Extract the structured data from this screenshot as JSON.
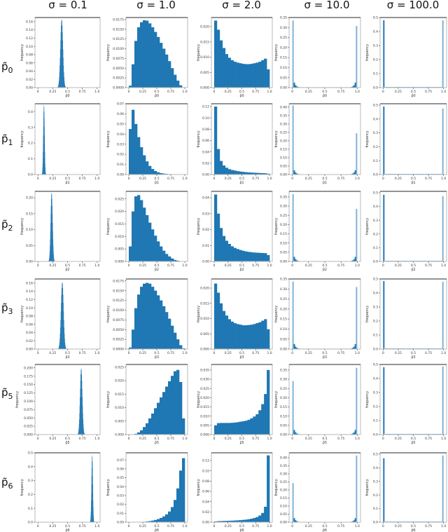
{
  "figure": {
    "column_titles": [
      "σ = 0.1",
      "σ = 1.0",
      "σ = 2.0",
      "σ = 10.0",
      "σ = 100.0"
    ],
    "row_labels": [
      {
        "base": "p̃",
        "sub": "0"
      },
      {
        "base": "p̃",
        "sub": "1"
      },
      {
        "base": "p̃",
        "sub": "2"
      },
      {
        "base": "p̃",
        "sub": "3"
      },
      {
        "base": "p̃",
        "sub": "5"
      },
      {
        "base": "p̃",
        "sub": "6"
      }
    ],
    "ylabel": "frequency",
    "xticks": [
      "0",
      "0.25",
      "0.5",
      "0.75",
      "1.0"
    ],
    "bar_color": "#1f77b4",
    "edge_bar_color": "#7fb3d9"
  },
  "chart_data": {
    "type": "bar",
    "layout": "grid 6 rows x 5 columns of histograms",
    "xlim": [
      0,
      1
    ],
    "series_shape_note": "values are approximate bin heights at 20 evenly spaced bins over [0,1]",
    "panels": [
      {
        "row": "p̃0",
        "sigma": 0.1,
        "xlabel": "p̂0",
        "ymax": 0.17,
        "yticks": [
          "0.00",
          "0.02",
          "0.04",
          "0.06",
          "0.08",
          "0.10",
          "0.12",
          "0.14",
          "0.16"
        ],
        "peak_x": 0.4,
        "peak_y": 0.165,
        "shape": "narrow",
        "width": 0.04
      },
      {
        "row": "p̃0",
        "sigma": 1.0,
        "xlabel": "p̂0",
        "ymax": 0.018,
        "yticks": [
          "0.0000",
          "0.0025",
          "0.0050",
          "0.0075",
          "0.0100",
          "0.0125",
          "0.0150",
          "0.0175"
        ],
        "values": [
          0.0005,
          0.006,
          0.012,
          0.0155,
          0.0168,
          0.0173,
          0.0172,
          0.0165,
          0.0155,
          0.0143,
          0.013,
          0.0115,
          0.01,
          0.0085,
          0.0068,
          0.005,
          0.0033,
          0.0018,
          0.0006,
          0.0001
        ]
      },
      {
        "row": "p̃0",
        "sigma": 2.0,
        "xlabel": "p̂0",
        "ymax": 0.023,
        "yticks": [
          "0.000",
          "0.005",
          "0.010",
          "0.015",
          "0.020"
        ],
        "values": [
          0.022,
          0.019,
          0.0155,
          0.013,
          0.011,
          0.0098,
          0.009,
          0.0085,
          0.0082,
          0.008,
          0.0078,
          0.0077,
          0.0077,
          0.0078,
          0.008,
          0.0082,
          0.0085,
          0.009,
          0.0095,
          0.006
        ]
      },
      {
        "row": "p̃0",
        "sigma": 10.0,
        "xlabel": "p̂0",
        "ymax": 0.35,
        "yticks": [
          "0.00",
          "0.05",
          "0.10",
          "0.15",
          "0.20",
          "0.25",
          "0.30",
          "0.35"
        ],
        "edge_left": 0.335,
        "edge_right": 0.308
      },
      {
        "row": "p̃0",
        "sigma": 100.0,
        "xlabel": "p̂0",
        "ymax": 0.5,
        "yticks": [
          "0.0",
          "0.1",
          "0.2",
          "0.3",
          "0.4",
          "0.5"
        ],
        "edge_left": 0.48,
        "edge_right": 0.48
      },
      {
        "row": "p̃1",
        "sigma": 0.1,
        "xlabel": "p̂1",
        "ymax": 0.45,
        "yticks": [
          "0.0",
          "0.1",
          "0.2",
          "0.3",
          "0.4"
        ],
        "peak_x": 0.1,
        "peak_y": 0.44,
        "shape": "narrow",
        "width": 0.02
      },
      {
        "row": "p̃1",
        "sigma": 1.0,
        "xlabel": "p̂1",
        "ymax": 0.07,
        "yticks": [
          "0.00",
          "0.01",
          "0.02",
          "0.03",
          "0.04",
          "0.05",
          "0.06",
          "0.07"
        ],
        "values": [
          0.045,
          0.064,
          0.05,
          0.037,
          0.027,
          0.019,
          0.013,
          0.0085,
          0.0055,
          0.0035,
          0.0022,
          0.0014,
          0.0009,
          0.0006,
          0.0004,
          0.0003,
          0.0002,
          0.0001,
          0.0001,
          0.0
        ]
      },
      {
        "row": "p̃1",
        "sigma": 2.0,
        "xlabel": "p̂1",
        "ymax": 0.125,
        "yticks": [
          "0.00",
          "0.02",
          "0.04",
          "0.06",
          "0.08",
          "0.10",
          "0.12"
        ],
        "values": [
          0.12,
          0.045,
          0.024,
          0.016,
          0.012,
          0.0095,
          0.008,
          0.007,
          0.006,
          0.0052,
          0.0047,
          0.0042,
          0.0038,
          0.0035,
          0.0032,
          0.003,
          0.0027,
          0.0025,
          0.0023,
          0.0015
        ]
      },
      {
        "row": "p̃1",
        "sigma": 10.0,
        "xlabel": "p̂1",
        "ymax": 0.42,
        "yticks": [
          "0.00",
          "0.05",
          "0.10",
          "0.15",
          "0.20",
          "0.25",
          "0.30",
          "0.35",
          "0.40"
        ],
        "edge_left": 0.41,
        "edge_right": 0.245
      },
      {
        "row": "p̃1",
        "sigma": 100.0,
        "xlabel": "p̂1",
        "ymax": 0.51,
        "yticks": [
          "0.0",
          "0.1",
          "0.2",
          "0.3",
          "0.4",
          "0.5"
        ],
        "edge_left": 0.49,
        "edge_right": 0.475
      },
      {
        "row": "p̃2",
        "sigma": 0.1,
        "xlabel": "p̂2",
        "ymax": 0.22,
        "yticks": [
          "0.00",
          "0.05",
          "0.10",
          "0.15",
          "0.20"
        ],
        "peak_x": 0.23,
        "peak_y": 0.215,
        "shape": "narrow",
        "width": 0.03
      },
      {
        "row": "p̃2",
        "sigma": 1.0,
        "xlabel": "p̂2",
        "ymax": 0.028,
        "yticks": [
          "0.000",
          "0.005",
          "0.010",
          "0.015",
          "0.020",
          "0.025"
        ],
        "values": [
          0.006,
          0.02,
          0.026,
          0.0265,
          0.0245,
          0.0215,
          0.0185,
          0.0155,
          0.0128,
          0.0103,
          0.008,
          0.006,
          0.0043,
          0.003,
          0.002,
          0.0012,
          0.0006,
          0.0003,
          0.0001,
          0.0
        ]
      },
      {
        "row": "p̃2",
        "sigma": 2.0,
        "xlabel": "p̂2",
        "ymax": 0.044,
        "yticks": [
          "0.00",
          "0.01",
          "0.02",
          "0.03",
          "0.04"
        ],
        "values": [
          0.042,
          0.03,
          0.021,
          0.016,
          0.013,
          0.011,
          0.0095,
          0.0085,
          0.0078,
          0.0072,
          0.0067,
          0.0063,
          0.006,
          0.0058,
          0.0056,
          0.0055,
          0.0054,
          0.0053,
          0.0052,
          0.004
        ]
      },
      {
        "row": "p̃2",
        "sigma": 10.0,
        "xlabel": "p̂2",
        "ymax": 0.38,
        "yticks": [
          "0.00",
          "0.05",
          "0.10",
          "0.15",
          "0.20",
          "0.25",
          "0.30",
          "0.35"
        ],
        "edge_left": 0.365,
        "edge_right": 0.285
      },
      {
        "row": "p̃2",
        "sigma": 100.0,
        "xlabel": "p̂2",
        "ymax": 0.51,
        "yticks": [
          "0.0",
          "0.1",
          "0.2",
          "0.3",
          "0.4",
          "0.5"
        ],
        "edge_left": 0.485,
        "edge_right": 0.475
      },
      {
        "row": "p̃3",
        "sigma": 0.1,
        "xlabel": "p̂3",
        "ymax": 0.17,
        "yticks": [
          "0.00",
          "0.02",
          "0.04",
          "0.06",
          "0.08",
          "0.10",
          "0.12",
          "0.14",
          "0.16"
        ],
        "peak_x": 0.41,
        "peak_y": 0.162,
        "shape": "narrow",
        "width": 0.04
      },
      {
        "row": "p̃3",
        "sigma": 1.0,
        "xlabel": "p̂3",
        "ymax": 0.018,
        "yticks": [
          "0.0000",
          "0.0025",
          "0.0050",
          "0.0075",
          "0.0100",
          "0.0125",
          "0.0150",
          "0.0175"
        ],
        "values": [
          0.0004,
          0.005,
          0.0105,
          0.014,
          0.016,
          0.0168,
          0.017,
          0.0168,
          0.016,
          0.015,
          0.0138,
          0.0125,
          0.011,
          0.0095,
          0.0078,
          0.006,
          0.0042,
          0.0025,
          0.001,
          0.0002
        ]
      },
      {
        "row": "p̃3",
        "sigma": 2.0,
        "xlabel": "p̂3",
        "ymax": 0.023,
        "yticks": [
          "0.000",
          "0.005",
          "0.010",
          "0.015",
          "0.020"
        ],
        "values": [
          0.0215,
          0.0185,
          0.015,
          0.0125,
          0.011,
          0.0098,
          0.009,
          0.0085,
          0.0082,
          0.008,
          0.0078,
          0.0078,
          0.0079,
          0.008,
          0.0082,
          0.0085,
          0.0088,
          0.0093,
          0.0098,
          0.0065
        ]
      },
      {
        "row": "p̃3",
        "sigma": 10.0,
        "xlabel": "p̂3",
        "ymax": 0.35,
        "yticks": [
          "0.00",
          "0.05",
          "0.10",
          "0.15",
          "0.20",
          "0.25",
          "0.30",
          "0.35"
        ],
        "edge_left": 0.337,
        "edge_right": 0.31
      },
      {
        "row": "p̃3",
        "sigma": 100.0,
        "xlabel": "p̂3",
        "ymax": 0.5,
        "yticks": [
          "0.0",
          "0.1",
          "0.2",
          "0.3",
          "0.4",
          "0.5"
        ],
        "edge_left": 0.485,
        "edge_right": 0.48
      },
      {
        "row": "p̃5",
        "sigma": 0.1,
        "xlabel": "p̂5",
        "ymax": 0.21,
        "yticks": [
          "0.000",
          "0.025",
          "0.050",
          "0.075",
          "0.100",
          "0.125",
          "0.150",
          "0.175",
          "0.200"
        ],
        "peak_x": 0.73,
        "peak_y": 0.198,
        "shape": "narrow",
        "width": 0.035
      },
      {
        "row": "p̃5",
        "sigma": 1.0,
        "xlabel": "p̂5",
        "ymax": 0.026,
        "yticks": [
          "0.000",
          "0.005",
          "0.010",
          "0.015",
          "0.020",
          "0.025"
        ],
        "values": [
          0.0,
          0.0001,
          0.0003,
          0.0008,
          0.0016,
          0.0028,
          0.0042,
          0.006,
          0.0078,
          0.0098,
          0.0118,
          0.0138,
          0.0158,
          0.0178,
          0.0198,
          0.0218,
          0.0235,
          0.024,
          0.0195,
          0.006
        ]
      },
      {
        "row": "p̃5",
        "sigma": 2.0,
        "xlabel": "p̂5",
        "ymax": 0.038,
        "yticks": [
          "0.000",
          "0.005",
          "0.010",
          "0.015",
          "0.020",
          "0.025",
          "0.030",
          "0.035"
        ],
        "values": [
          0.005,
          0.0062,
          0.0063,
          0.0063,
          0.0063,
          0.0063,
          0.0064,
          0.0065,
          0.0067,
          0.007,
          0.0072,
          0.0075,
          0.008,
          0.0088,
          0.0098,
          0.011,
          0.0132,
          0.0165,
          0.022,
          0.035
        ]
      },
      {
        "row": "p̃5",
        "sigma": 10.0,
        "xlabel": "p̂5",
        "ymax": 0.38,
        "yticks": [
          "0.00",
          "0.05",
          "0.10",
          "0.15",
          "0.20",
          "0.25",
          "0.30",
          "0.35"
        ],
        "edge_left": 0.29,
        "edge_right": 0.362
      },
      {
        "row": "p̃5",
        "sigma": 100.0,
        "xlabel": "p̂5",
        "ymax": 0.5,
        "yticks": [
          "0.0",
          "0.1",
          "0.2",
          "0.3",
          "0.4",
          "0.5"
        ],
        "edge_left": 0.48,
        "edge_right": 0.485
      },
      {
        "row": "p̃6",
        "sigma": 0.1,
        "xlabel": "p̂6",
        "ymax": 0.5,
        "yticks": [
          "0.0",
          "0.1",
          "0.2",
          "0.3",
          "0.4",
          "0.5"
        ],
        "peak_x": 0.915,
        "peak_y": 0.48,
        "shape": "narrow",
        "width": 0.02
      },
      {
        "row": "p̃6",
        "sigma": 1.0,
        "xlabel": "p̂6",
        "ymax": 0.078,
        "yticks": [
          "0.00",
          "0.01",
          "0.02",
          "0.03",
          "0.04",
          "0.05",
          "0.06",
          "0.07"
        ],
        "values": [
          0.0,
          0.0,
          0.0001,
          0.0002,
          0.0003,
          0.0005,
          0.0008,
          0.0012,
          0.0018,
          0.0025,
          0.0035,
          0.0048,
          0.0065,
          0.0088,
          0.012,
          0.017,
          0.025,
          0.038,
          0.058,
          0.072
        ]
      },
      {
        "row": "p̃6",
        "sigma": 2.0,
        "xlabel": "p̂6",
        "ymax": 0.135,
        "yticks": [
          "0.00",
          "0.02",
          "0.04",
          "0.06",
          "0.08",
          "0.10",
          "0.12"
        ],
        "values": [
          0.0015,
          0.002,
          0.0022,
          0.0024,
          0.0026,
          0.0028,
          0.003,
          0.0033,
          0.0036,
          0.004,
          0.0045,
          0.005,
          0.0058,
          0.0068,
          0.0082,
          0.01,
          0.013,
          0.018,
          0.03,
          0.13
        ]
      },
      {
        "row": "p̃6",
        "sigma": 10.0,
        "xlabel": "p̂6",
        "ymax": 0.43,
        "yticks": [
          "0.00",
          "0.05",
          "0.10",
          "0.15",
          "0.20",
          "0.25",
          "0.30",
          "0.35",
          "0.40"
        ],
        "edge_left": 0.242,
        "edge_right": 0.413
      },
      {
        "row": "p̃6",
        "sigma": 100.0,
        "xlabel": "p̂6",
        "ymax": 0.51,
        "yticks": [
          "0.0",
          "0.1",
          "0.2",
          "0.3",
          "0.4",
          "0.5"
        ],
        "edge_left": 0.47,
        "edge_right": 0.49
      }
    ]
  }
}
